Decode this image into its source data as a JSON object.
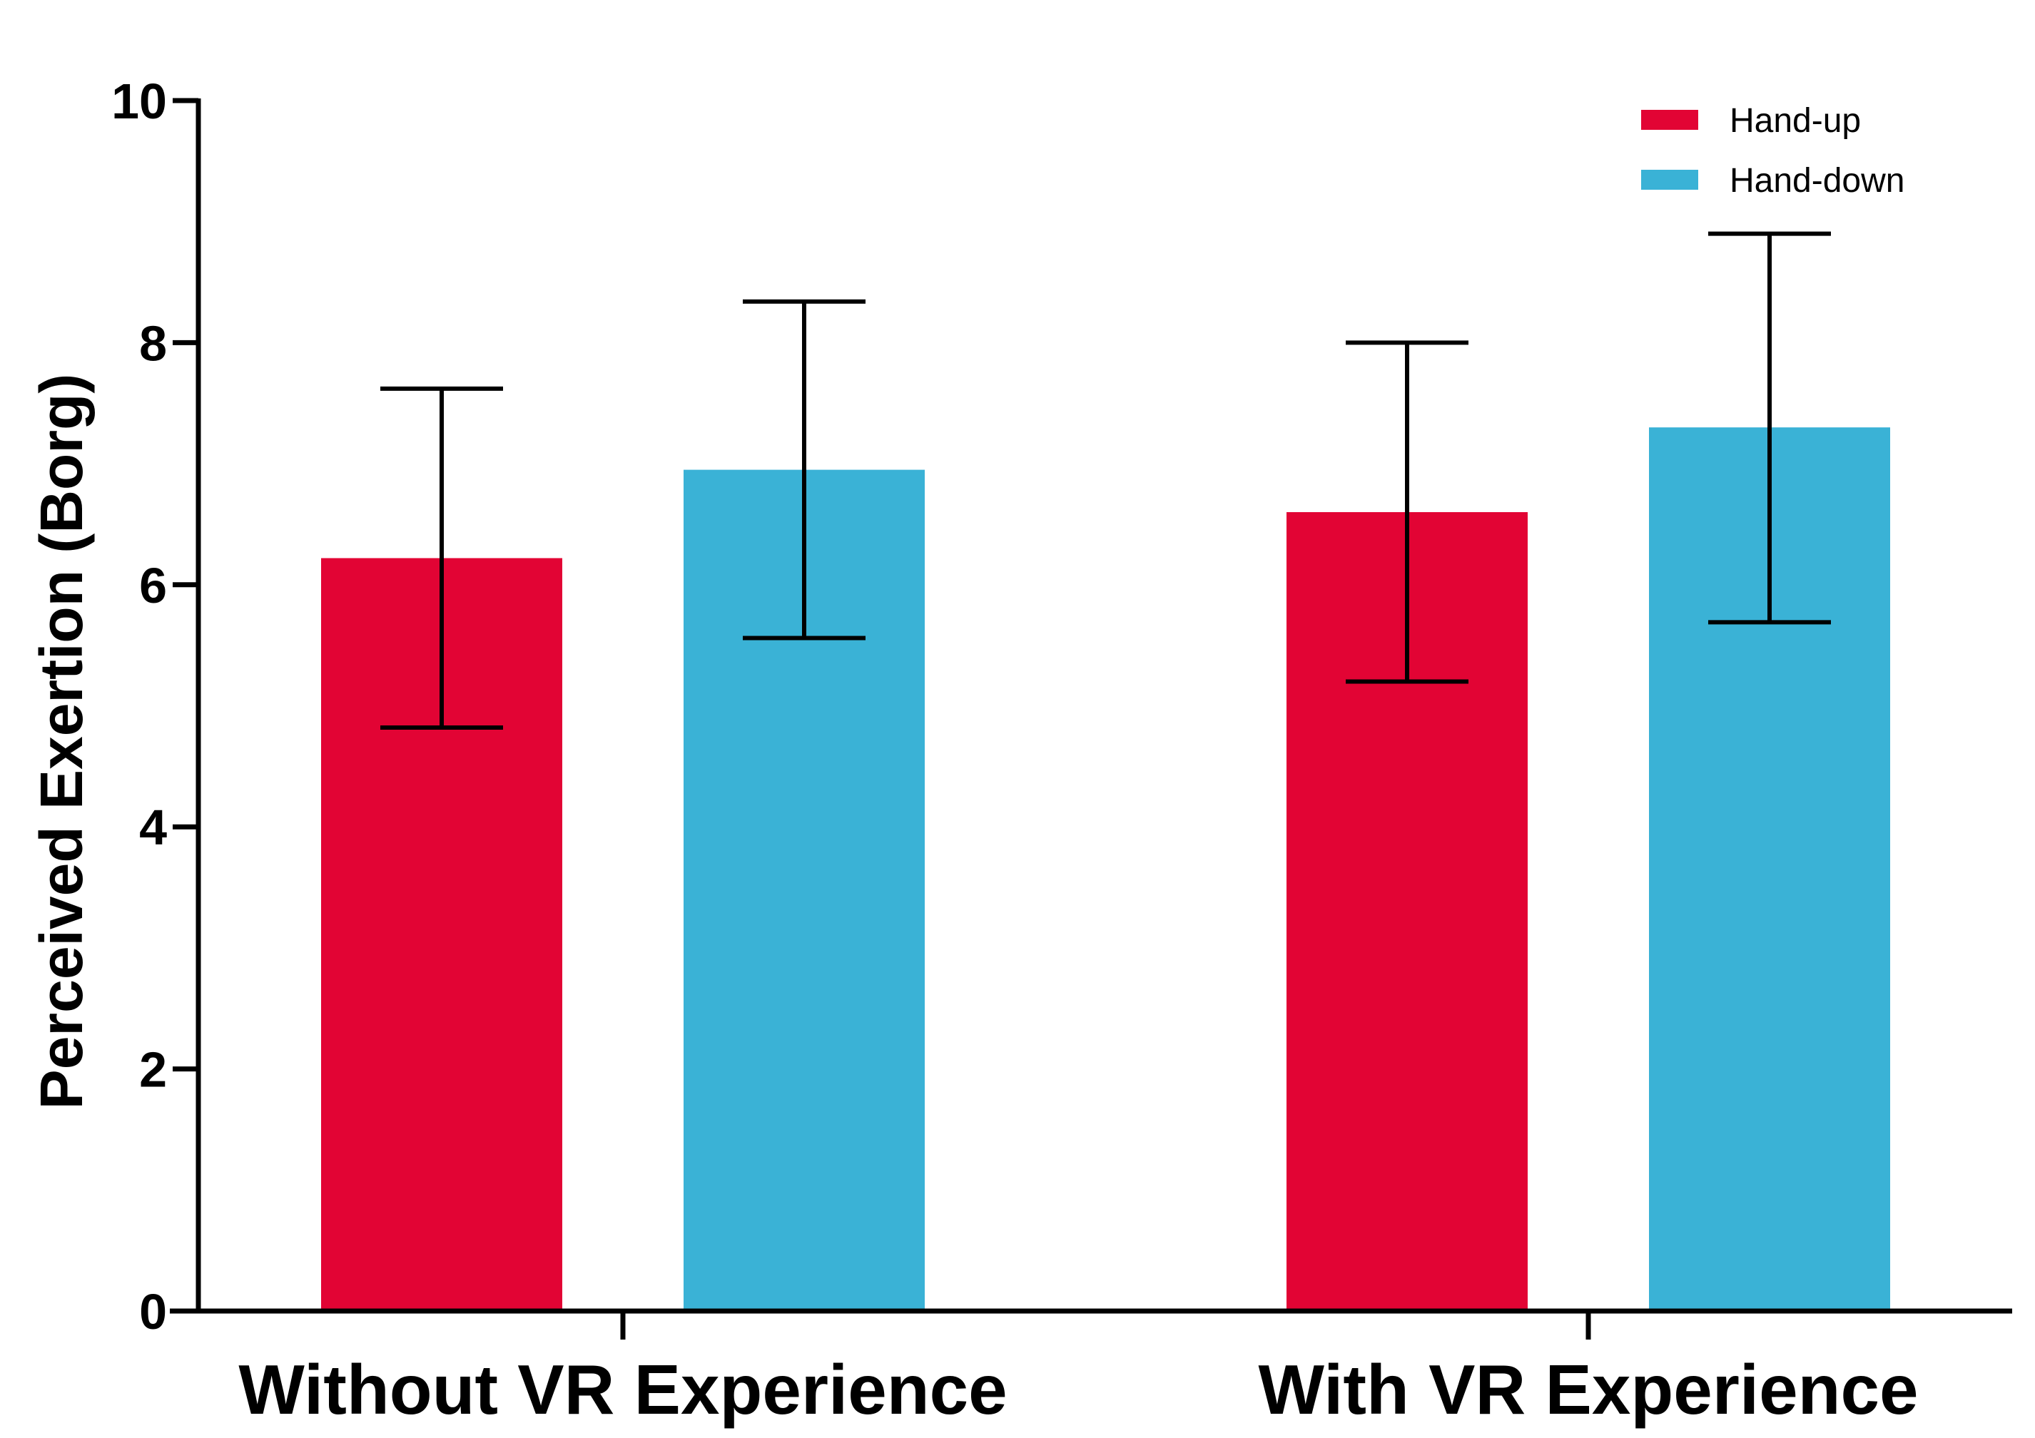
{
  "chart_data": {
    "type": "bar",
    "categories": [
      "Without VR Experience",
      "With VR Experience"
    ],
    "series": [
      {
        "name": "Hand-up",
        "color": "#e20434",
        "values": [
          6.22,
          6.6
        ],
        "error_low": [
          4.82,
          5.2
        ],
        "error_high": [
          7.62,
          8.0
        ]
      },
      {
        "name": "Hand-down",
        "color": "#3ab2d6",
        "values": [
          6.95,
          7.3
        ],
        "error_low": [
          5.56,
          5.69
        ],
        "error_high": [
          8.34,
          8.9
        ]
      }
    ],
    "ylabel": "Perceived Exertion (Borg)",
    "ylim": [
      0,
      10
    ],
    "yticks": [
      "0",
      "2",
      "4",
      "6",
      "8",
      "10"
    ],
    "legend_position": "top-right",
    "grid": false
  }
}
